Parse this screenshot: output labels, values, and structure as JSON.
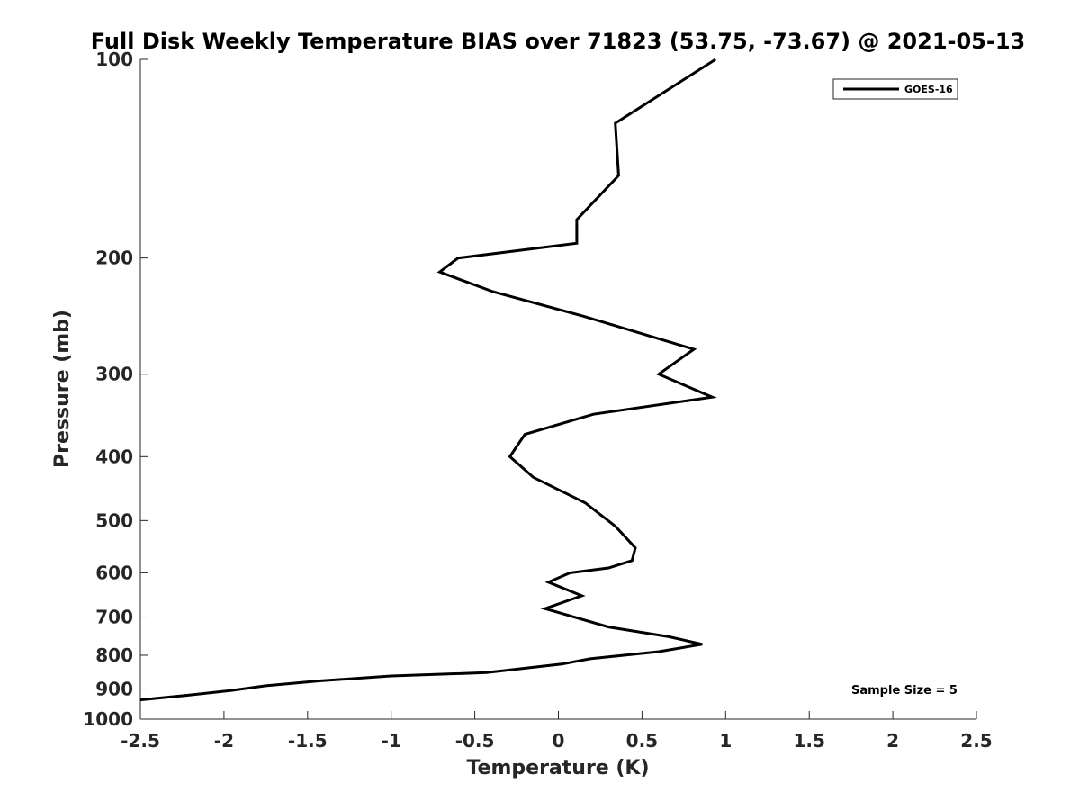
{
  "chart_data": {
    "type": "line",
    "title": "Full Disk Weekly Temperature BIAS over 71823 (53.75, -73.67) @ 2021-05-13",
    "xlabel": "Temperature (K)",
    "ylabel": "Pressure (mb)",
    "xlim": [
      -2.5,
      2.5
    ],
    "ylim": [
      1000,
      100
    ],
    "y_scale": "log",
    "x_ticks": [
      "-2.5",
      "-2",
      "-1.5",
      "-1",
      "-0.5",
      "0",
      "0.5",
      "1",
      "1.5",
      "2",
      "2.5"
    ],
    "y_ticks": [
      "100",
      "200",
      "300",
      "400",
      "500",
      "600",
      "700",
      "800",
      "900",
      "1000"
    ],
    "grid": false,
    "legend": {
      "position": "top-right",
      "entries": [
        "GOES-16"
      ]
    },
    "annotation": "Sample Size = 5",
    "line_color": "#000000",
    "series": [
      {
        "name": "GOES-16",
        "x": [
          0.94,
          0.34,
          0.36,
          0.11,
          0.11,
          -0.6,
          -0.71,
          -0.39,
          0.15,
          0.81,
          0.6,
          0.92,
          0.21,
          -0.2,
          -0.29,
          -0.15,
          0.16,
          0.34,
          0.46,
          0.44,
          0.3,
          0.07,
          -0.06,
          0.14,
          -0.08,
          0.3,
          0.66,
          0.86,
          0.6,
          0.19,
          0.02,
          -0.43,
          -1.0,
          -1.43,
          -1.75,
          -1.96,
          -2.22,
          -2.5
        ],
        "y": [
          100,
          125,
          150,
          175,
          190,
          200,
          210,
          225,
          245,
          275,
          300,
          325,
          345,
          370,
          400,
          430,
          470,
          510,
          550,
          575,
          590,
          600,
          620,
          650,
          680,
          725,
          750,
          770,
          790,
          810,
          825,
          850,
          860,
          875,
          890,
          905,
          920,
          935
        ]
      }
    ]
  }
}
